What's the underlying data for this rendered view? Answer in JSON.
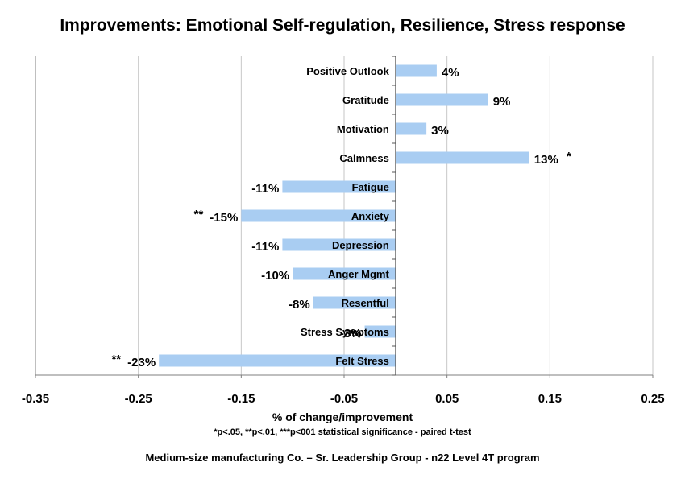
{
  "chart_data": {
    "type": "bar",
    "orientation": "horizontal",
    "title": "Improvements: Emotional Self-regulation, Resilience, Stress response",
    "xlabel": "% of change/improvement",
    "ylabel": "",
    "xlim": [
      -0.35,
      0.25
    ],
    "x_ticks": [
      "-0.35",
      "-0.25",
      "-0.15",
      "-0.05",
      "0.05",
      "0.15",
      "0.25"
    ],
    "grid": "vertical",
    "categories": [
      "Positive Outlook",
      "Gratitude",
      "Motivation",
      "Calmness",
      "Fatigue",
      "Anxiety",
      "Depression",
      "Anger Mgmt",
      "Resentful",
      "Stress Symptoms",
      "Felt Stress"
    ],
    "values": [
      0.04,
      0.09,
      0.03,
      0.13,
      -0.11,
      -0.15,
      -0.11,
      -0.1,
      -0.08,
      -0.03,
      -0.23
    ],
    "data_labels": [
      "4%",
      "9%",
      "3%",
      "13%",
      "-11%",
      "-15%",
      "-11%",
      "-10%",
      "-8%",
      "-3%",
      "-23%"
    ],
    "significance": [
      "",
      "",
      "",
      "*",
      "",
      "**",
      "",
      "",
      "",
      "",
      "**"
    ],
    "bar_color": "#a9cdf2",
    "notes": [
      "*p<.05, **p<.01, ***p<001 statistical significance - paired t-test",
      "Medium-size manufacturing Co. – Sr. Leadership Group - n22  Level 4T program"
    ]
  }
}
